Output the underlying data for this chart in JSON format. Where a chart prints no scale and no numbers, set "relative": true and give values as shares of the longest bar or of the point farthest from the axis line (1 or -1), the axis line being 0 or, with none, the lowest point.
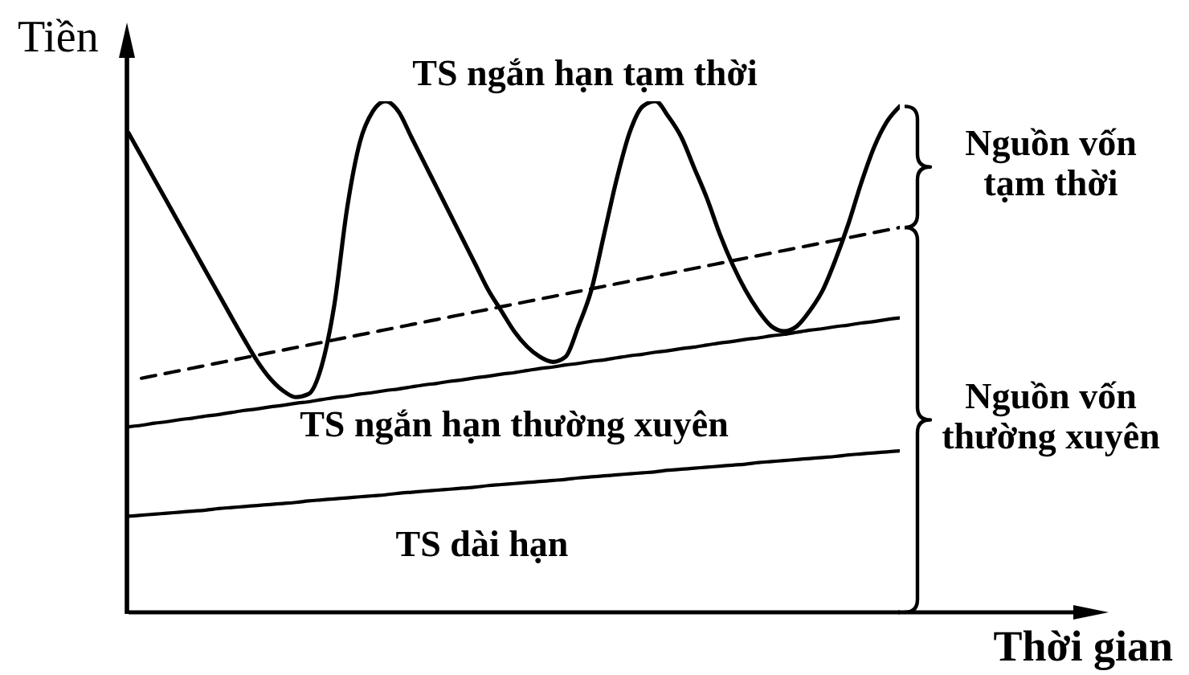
{
  "chart_data": {
    "type": "line",
    "relative": true,
    "xlabel": "Thời gian",
    "ylabel": "Tiền",
    "categories": [
      null,
      null,
      null,
      null,
      null,
      null,
      null,
      null,
      null,
      null,
      null,
      null,
      null,
      null,
      null,
      null,
      null,
      null,
      null,
      null,
      null,
      null,
      null,
      null,
      null,
      null,
      null,
      null,
      null,
      null,
      null,
      null,
      null,
      null,
      null,
      null,
      null,
      null,
      null,
      null,
      null,
      null,
      null,
      null,
      null,
      null,
      null,
      null,
      null,
      null,
      null,
      null,
      null,
      null,
      null,
      null,
      null,
      null,
      null,
      null,
      null
    ],
    "series": [
      {
        "name": "TS ngắn hạn tạm thời",
        "color": "#000000",
        "values": [
          0.938,
          0.893,
          0.848,
          0.803,
          0.758,
          0.713,
          0.668,
          0.623,
          0.578,
          0.534,
          0.492,
          0.458,
          0.434,
          0.421,
          0.427,
          0.48,
          0.6,
          0.79,
          0.92,
          0.98,
          1.0,
          0.98,
          0.93,
          0.88,
          0.83,
          0.78,
          0.73,
          0.68,
          0.63,
          0.59,
          0.55,
          0.52,
          0.5,
          0.49,
          0.5,
          0.56,
          0.63,
          0.74,
          0.85,
          0.94,
          0.99,
          1.0,
          0.97,
          0.93,
          0.87,
          0.81,
          0.74,
          0.68,
          0.63,
          0.59,
          0.56,
          0.55,
          0.56,
          0.59,
          0.63,
          0.69,
          0.76,
          0.84,
          0.91,
          0.96,
          0.99
        ]
      },
      {
        "color": "#000000",
        "line_style": "dashed",
        "values": [
          null,
          0.458,
          0.463,
          0.468,
          0.473,
          0.478,
          0.483,
          0.488,
          0.493,
          0.498,
          0.503,
          0.508,
          0.513,
          0.518,
          0.523,
          0.528,
          0.533,
          0.538,
          0.543,
          0.548,
          0.553,
          0.558,
          0.563,
          0.568,
          0.573,
          0.578,
          0.583,
          0.588,
          0.593,
          0.598,
          0.603,
          0.608,
          0.613,
          0.618,
          0.623,
          0.628,
          0.633,
          0.638,
          0.643,
          0.648,
          0.653,
          0.658,
          0.663,
          0.668,
          0.673,
          0.678,
          0.683,
          0.688,
          0.693,
          0.698,
          0.703,
          0.708,
          0.713,
          0.718,
          0.723,
          0.728,
          0.733,
          0.738,
          0.743,
          0.748,
          0.753
        ]
      },
      {
        "name": "TS ngắn hạn thường xuyên",
        "color": "#000000",
        "values": [
          0.363,
          0.366,
          0.37,
          0.373,
          0.377,
          0.38,
          0.384,
          0.387,
          0.391,
          0.395,
          0.398,
          0.402,
          0.405,
          0.409,
          0.412,
          0.416,
          0.42,
          0.423,
          0.427,
          0.43,
          0.434,
          0.437,
          0.441,
          0.445,
          0.448,
          0.452,
          0.455,
          0.459,
          0.462,
          0.466,
          0.469,
          0.473,
          0.477,
          0.48,
          0.484,
          0.487,
          0.491,
          0.494,
          0.498,
          0.502,
          0.505,
          0.509,
          0.512,
          0.516,
          0.519,
          0.523,
          0.527,
          0.53,
          0.534,
          0.537,
          0.541,
          0.544,
          0.548,
          0.552,
          0.555,
          0.559,
          0.562,
          0.566,
          0.569,
          0.573,
          0.576
        ]
      },
      {
        "name": "TS dài hạn",
        "color": "#000000",
        "values": [
          0.188,
          0.19,
          0.192,
          0.194,
          0.196,
          0.198,
          0.2,
          0.203,
          0.205,
          0.207,
          0.209,
          0.211,
          0.213,
          0.215,
          0.218,
          0.22,
          0.222,
          0.224,
          0.226,
          0.228,
          0.23,
          0.233,
          0.235,
          0.237,
          0.239,
          0.241,
          0.243,
          0.245,
          0.248,
          0.25,
          0.252,
          0.254,
          0.256,
          0.258,
          0.26,
          0.263,
          0.265,
          0.267,
          0.269,
          0.271,
          0.273,
          0.275,
          0.278,
          0.28,
          0.282,
          0.284,
          0.286,
          0.288,
          0.29,
          0.293,
          0.295,
          0.297,
          0.299,
          0.301,
          0.303,
          0.305,
          0.308,
          0.31,
          0.312,
          0.314,
          0.316
        ]
      }
    ],
    "annotations": [
      "Nguồn vốn tạm thời",
      "Nguồn vốn thường xuyên"
    ]
  }
}
